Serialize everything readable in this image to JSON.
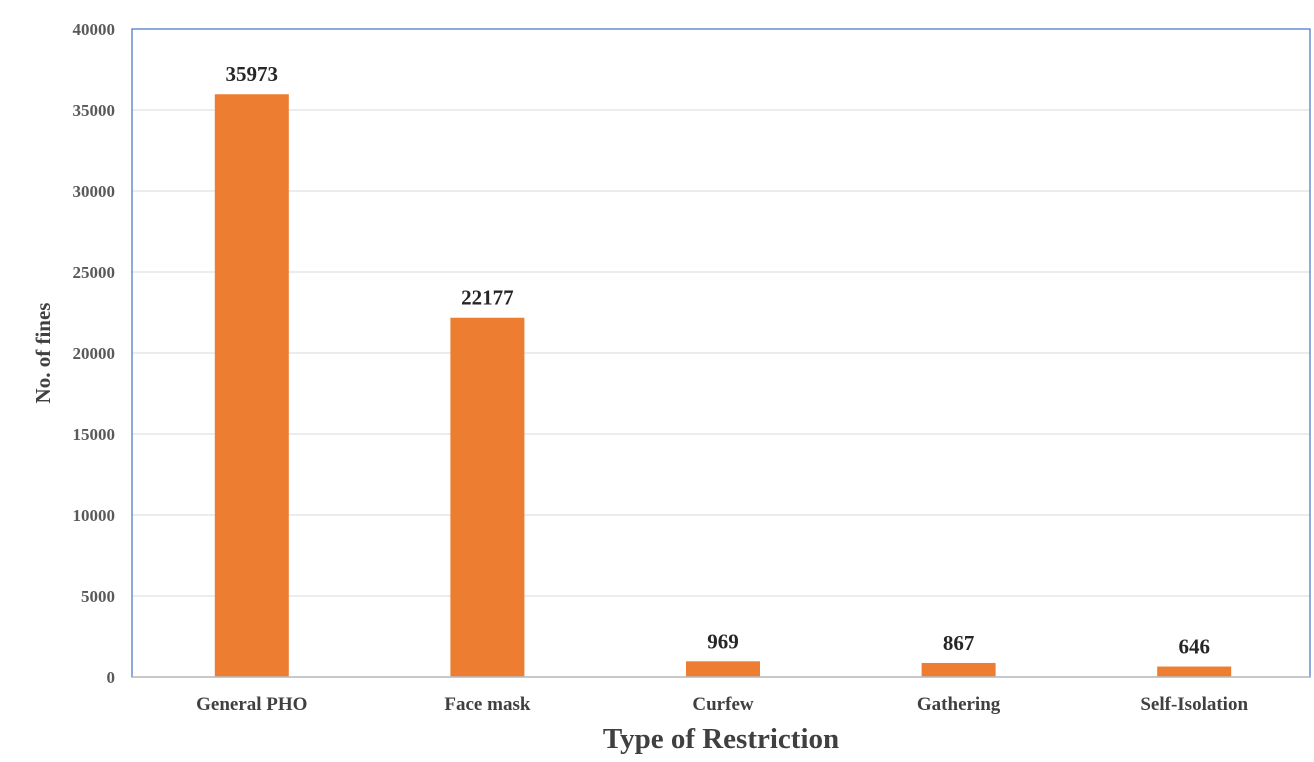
{
  "chart_data": {
    "type": "bar",
    "categories": [
      "General PHO",
      "Face mask",
      "Curfew",
      "Gathering",
      "Self-Isolation"
    ],
    "values": [
      35973,
      22177,
      969,
      867,
      646
    ],
    "xlabel": "Type of Restriction",
    "ylabel": "No. of fines",
    "ylim": [
      0,
      40000
    ],
    "yticks": [
      0,
      5000,
      10000,
      15000,
      20000,
      25000,
      30000,
      35000,
      40000
    ],
    "grid": true,
    "legend": "none",
    "bar_color": "#ED7D31",
    "gridline_color": "#D9D9D9",
    "frame_color": "#4472C4"
  }
}
